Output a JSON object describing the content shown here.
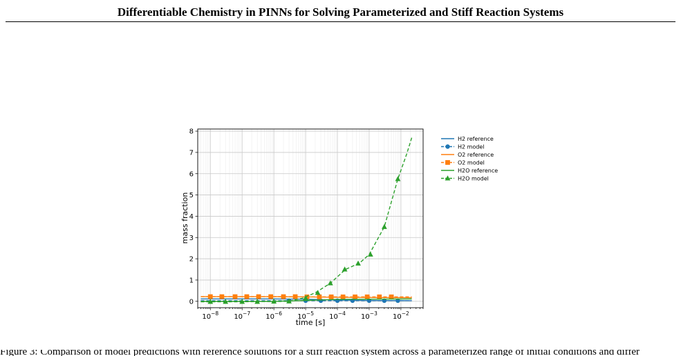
{
  "header": {
    "title": "Differentiable Chemistry in PINNs for Solving Parameterized and Stiff Reaction Systems"
  },
  "chart_data": {
    "type": "line",
    "title": "",
    "xlabel": "time [s]",
    "ylabel": "mass fraction",
    "xscale": "log",
    "xlim": [
      4e-09,
      0.05
    ],
    "ylim": [
      -0.3,
      8.1
    ],
    "grid": true,
    "legend_position": "outside-right",
    "x_ticks": [
      {
        "value": 1e-08,
        "base": "10",
        "exp": "−8"
      },
      {
        "value": 1e-07,
        "base": "10",
        "exp": "−7"
      },
      {
        "value": 1e-06,
        "base": "10",
        "exp": "−6"
      },
      {
        "value": 1e-05,
        "base": "10",
        "exp": "−5"
      },
      {
        "value": 0.0001,
        "base": "10",
        "exp": "−4"
      },
      {
        "value": 0.001,
        "base": "10",
        "exp": "−3"
      },
      {
        "value": 0.01,
        "base": "10",
        "exp": "−2"
      }
    ],
    "y_ticks": [
      {
        "value": 0,
        "label": "0"
      },
      {
        "value": 1,
        "label": "1"
      },
      {
        "value": 2,
        "label": "2"
      },
      {
        "value": 3,
        "label": "3"
      },
      {
        "value": 4,
        "label": "4"
      },
      {
        "value": 5,
        "label": "5"
      },
      {
        "value": 6,
        "label": "6"
      },
      {
        "value": 7,
        "label": "7"
      },
      {
        "value": 8,
        "label": "8"
      }
    ],
    "series": [
      {
        "name": "H2 reference",
        "color": "#1f77b4",
        "style": "solid",
        "marker": "none",
        "x": [
          5e-09,
          1e-06,
          1e-05,
          0.0001,
          0.001,
          0.022
        ],
        "y": [
          0.11,
          0.11,
          0.1,
          0.06,
          0.04,
          0.03
        ]
      },
      {
        "name": "H2 model",
        "color": "#1f77b4",
        "style": "dashed",
        "marker": "circle",
        "x": [
          5e-09,
          1e-08,
          3e-08,
          1e-07,
          3e-07,
          1e-06,
          3e-06,
          1e-05,
          3e-05,
          0.0001,
          0.0003,
          0.001,
          0.003,
          0.01,
          0.022
        ],
        "y": [
          0.03,
          0.03,
          0.03,
          0.03,
          0.03,
          0.03,
          0.03,
          0.03,
          0.03,
          0.03,
          0.03,
          0.03,
          0.03,
          0.03,
          0.03
        ],
        "marker_x": [
          3e-06,
          1e-05,
          3e-05,
          0.0001,
          0.0003,
          0.001,
          0.003,
          0.008
        ],
        "marker_y": [
          0.03,
          0.03,
          0.03,
          0.03,
          0.03,
          0.03,
          0.03,
          0.03
        ]
      },
      {
        "name": "O2 reference",
        "color": "#ff7f0e",
        "style": "solid",
        "marker": "none",
        "x": [
          5e-09,
          1e-06,
          1e-05,
          0.0001,
          0.001,
          0.022
        ],
        "y": [
          0.22,
          0.22,
          0.21,
          0.19,
          0.18,
          0.17
        ]
      },
      {
        "name": "O2 model",
        "color": "#ff7f0e",
        "style": "dashed",
        "marker": "square",
        "x": [
          5e-09,
          1e-06,
          1e-05,
          0.0001,
          0.001,
          0.022
        ],
        "y": [
          0.22,
          0.22,
          0.21,
          0.21,
          0.21,
          0.21
        ],
        "marker_x": [
          1e-08,
          2.3e-08,
          6e-08,
          1.4e-07,
          3.3e-07,
          8e-07,
          2e-06,
          4.7e-06,
          1.1e-05,
          2.7e-05,
          6.4e-05,
          0.00015,
          0.00036,
          0.00087,
          0.0021,
          0.005
        ],
        "marker_y": [
          0.22,
          0.22,
          0.22,
          0.22,
          0.22,
          0.22,
          0.22,
          0.22,
          0.21,
          0.21,
          0.21,
          0.21,
          0.21,
          0.21,
          0.21,
          0.21
        ]
      },
      {
        "name": "H2O reference",
        "color": "#2ca02c",
        "style": "solid",
        "marker": "none",
        "x": [
          5e-09,
          1e-06,
          1e-05,
          0.0001,
          0.001,
          0.022
        ],
        "y": [
          0.0,
          0.0,
          0.04,
          0.09,
          0.1,
          0.11
        ]
      },
      {
        "name": "H2O model",
        "color": "#2ca02c",
        "style": "dashed",
        "marker": "triangle",
        "x": [
          5e-09,
          1e-08,
          3e-08,
          1e-07,
          3e-07,
          1e-06,
          3e-06,
          8e-06,
          2e-05,
          6e-05,
          0.00018,
          0.0005,
          0.001,
          0.003,
          0.008,
          0.015,
          0.022
        ],
        "y": [
          -0.02,
          -0.02,
          -0.02,
          -0.02,
          -0.01,
          -0.01,
          0.0,
          0.15,
          0.4,
          0.85,
          1.5,
          1.8,
          2.2,
          3.5,
          5.75,
          6.9,
          7.7
        ],
        "marker_x": [
          1e-08,
          3e-08,
          1e-07,
          3e-07,
          1e-06,
          3e-06,
          1e-05,
          2.4e-05,
          6e-05,
          0.00017,
          0.00045,
          0.0011,
          0.003,
          0.008
        ],
        "marker_y": [
          -0.02,
          -0.02,
          -0.02,
          -0.02,
          -0.01,
          0.0,
          0.15,
          0.4,
          0.85,
          1.5,
          1.78,
          2.2,
          3.5,
          5.75
        ]
      }
    ]
  },
  "footer": {
    "text_clipped": "Figure 3: Comparison of model predictions with reference solutions for a stiff reaction system across a parameterized range of initial conditions and differ"
  }
}
